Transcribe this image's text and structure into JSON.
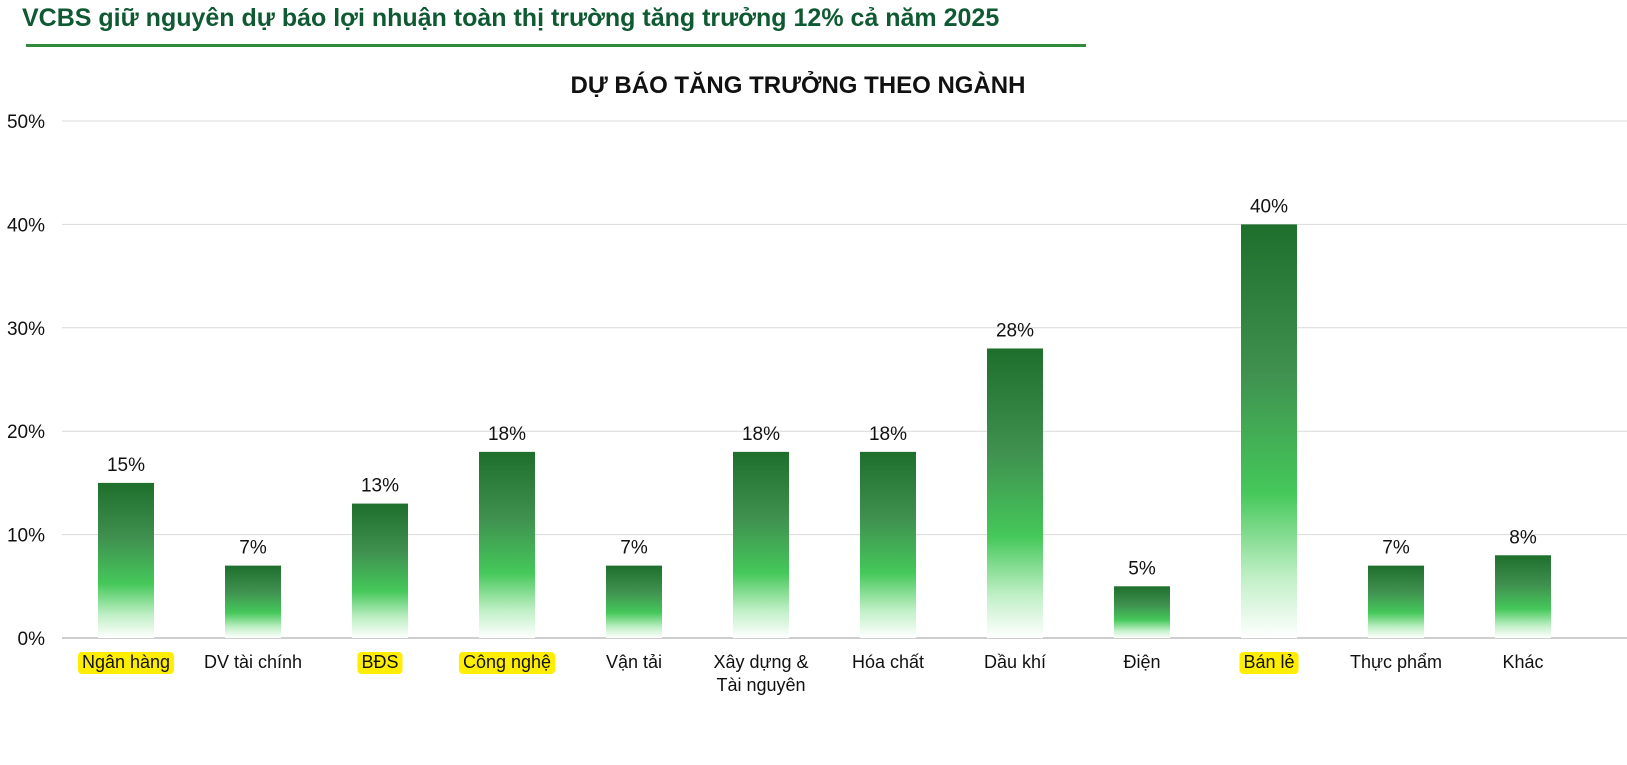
{
  "headline": "VCBS giữ nguyên dự báo lợi nhuận toàn thị trường tăng trưởng 12% cả năm 2025",
  "colors": {
    "headline": "#0f5a32",
    "bar_top": "#1e6e2c",
    "bar_mid": "#45c85a",
    "highlight": "#ffee00"
  },
  "chart_data": {
    "type": "bar",
    "title": "DỰ BÁO TĂNG TRƯỞNG THEO NGÀNH",
    "xlabel": "",
    "ylabel": "",
    "ylim": [
      0,
      50
    ],
    "y_ticks": [
      "0%",
      "10%",
      "20%",
      "30%",
      "40%",
      "50%"
    ],
    "grid": true,
    "legend": "none",
    "categories": [
      [
        "Ngân hàng"
      ],
      [
        "DV tài chính"
      ],
      [
        "BĐS"
      ],
      [
        "Công nghệ"
      ],
      [
        "Vận tải"
      ],
      [
        "Xây dựng &",
        "Tài nguyên"
      ],
      [
        "Hóa chất"
      ],
      [
        "Dầu khí"
      ],
      [
        "Điện"
      ],
      [
        "Bán lẻ"
      ],
      [
        "Thực phẩm"
      ],
      [
        "Khác"
      ]
    ],
    "values": [
      15,
      7,
      13,
      18,
      7,
      18,
      18,
      28,
      5,
      40,
      7,
      8
    ],
    "data_labels": [
      "15%",
      "7%",
      "13%",
      "18%",
      "7%",
      "18%",
      "18%",
      "28%",
      "5%",
      "40%",
      "7%",
      "8%"
    ],
    "highlighted_categories": [
      0,
      2,
      3,
      9
    ]
  }
}
